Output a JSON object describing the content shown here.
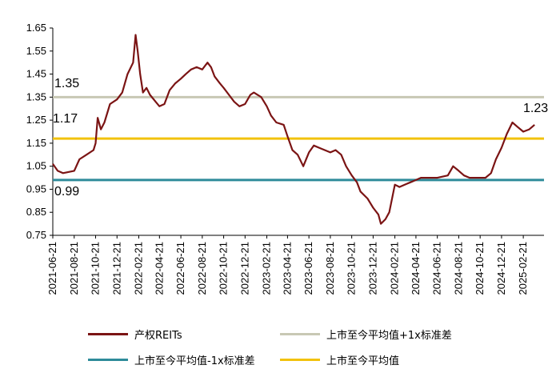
{
  "chart_data": {
    "type": "line",
    "ylim": [
      0.75,
      1.65
    ],
    "yticks": [
      "1.65",
      "1.55",
      "1.45",
      "1.35",
      "1.25",
      "1.15",
      "1.05",
      "0.95",
      "0.85",
      "0.75"
    ],
    "xticks": [
      "2021-06-21",
      "2021-08-21",
      "2021-10-21",
      "2021-12-21",
      "2022-02-21",
      "2022-04-21",
      "2022-06-21",
      "2022-08-21",
      "2022-10-21",
      "2022-12-21",
      "2023-02-21",
      "2023-04-21",
      "2023-06-21",
      "2023-08-21",
      "2023-10-21",
      "2023-12-21",
      "2024-02-21",
      "2024-04-21",
      "2024-06-21",
      "2024-08-21",
      "2024-10-21",
      "2024-12-21",
      "2025-02-21"
    ],
    "x_start": "2021-06-21",
    "x_end": "2025-04-21",
    "series": [
      {
        "name": "产权REITs",
        "color": "#7B1414",
        "points": [
          [
            "2021-06-21",
            1.06
          ],
          [
            "2021-07-05",
            1.03
          ],
          [
            "2021-07-20",
            1.02
          ],
          [
            "2021-08-21",
            1.03
          ],
          [
            "2021-09-05",
            1.08
          ],
          [
            "2021-09-25",
            1.1
          ],
          [
            "2021-10-15",
            1.12
          ],
          [
            "2021-10-21",
            1.15
          ],
          [
            "2021-10-27",
            1.26
          ],
          [
            "2021-11-05",
            1.21
          ],
          [
            "2021-11-15",
            1.24
          ],
          [
            "2021-12-01",
            1.32
          ],
          [
            "2021-12-21",
            1.34
          ],
          [
            "2022-01-05",
            1.37
          ],
          [
            "2022-01-20",
            1.45
          ],
          [
            "2022-02-05",
            1.5
          ],
          [
            "2022-02-12",
            1.62
          ],
          [
            "2022-02-18",
            1.55
          ],
          [
            "2022-02-25",
            1.45
          ],
          [
            "2022-03-05",
            1.37
          ],
          [
            "2022-03-15",
            1.39
          ],
          [
            "2022-03-25",
            1.36
          ],
          [
            "2022-04-10",
            1.33
          ],
          [
            "2022-04-21",
            1.31
          ],
          [
            "2022-05-05",
            1.32
          ],
          [
            "2022-05-20",
            1.38
          ],
          [
            "2022-06-05",
            1.41
          ],
          [
            "2022-06-21",
            1.43
          ],
          [
            "2022-07-05",
            1.45
          ],
          [
            "2022-07-20",
            1.47
          ],
          [
            "2022-08-05",
            1.48
          ],
          [
            "2022-08-21",
            1.47
          ],
          [
            "2022-09-05",
            1.5
          ],
          [
            "2022-09-15",
            1.48
          ],
          [
            "2022-09-25",
            1.44
          ],
          [
            "2022-10-10",
            1.41
          ],
          [
            "2022-10-21",
            1.39
          ],
          [
            "2022-11-05",
            1.36
          ],
          [
            "2022-11-20",
            1.33
          ],
          [
            "2022-12-05",
            1.31
          ],
          [
            "2022-12-21",
            1.32
          ],
          [
            "2023-01-05",
            1.36
          ],
          [
            "2023-01-15",
            1.37
          ],
          [
            "2023-02-05",
            1.35
          ],
          [
            "2023-02-21",
            1.31
          ],
          [
            "2023-03-05",
            1.27
          ],
          [
            "2023-03-20",
            1.24
          ],
          [
            "2023-04-10",
            1.23
          ],
          [
            "2023-04-21",
            1.18
          ],
          [
            "2023-05-05",
            1.12
          ],
          [
            "2023-05-20",
            1.1
          ],
          [
            "2023-06-05",
            1.05
          ],
          [
            "2023-06-21",
            1.11
          ],
          [
            "2023-07-05",
            1.14
          ],
          [
            "2023-07-20",
            1.13
          ],
          [
            "2023-08-05",
            1.12
          ],
          [
            "2023-08-21",
            1.11
          ],
          [
            "2023-09-05",
            1.12
          ],
          [
            "2023-09-21",
            1.1
          ],
          [
            "2023-10-05",
            1.05
          ],
          [
            "2023-10-21",
            1.01
          ],
          [
            "2023-11-05",
            0.98
          ],
          [
            "2023-11-15",
            0.94
          ],
          [
            "2023-12-05",
            0.91
          ],
          [
            "2023-12-21",
            0.87
          ],
          [
            "2024-01-05",
            0.84
          ],
          [
            "2024-01-12",
            0.8
          ],
          [
            "2024-01-25",
            0.82
          ],
          [
            "2024-02-05",
            0.85
          ],
          [
            "2024-02-21",
            0.97
          ],
          [
            "2024-03-05",
            0.96
          ],
          [
            "2024-03-20",
            0.97
          ],
          [
            "2024-04-05",
            0.98
          ],
          [
            "2024-04-21",
            0.99
          ],
          [
            "2024-05-05",
            1.0
          ],
          [
            "2024-06-05",
            1.0
          ],
          [
            "2024-06-21",
            1.0
          ],
          [
            "2024-07-21",
            1.01
          ],
          [
            "2024-08-05",
            1.05
          ],
          [
            "2024-08-21",
            1.03
          ],
          [
            "2024-09-05",
            1.01
          ],
          [
            "2024-09-21",
            1.0
          ],
          [
            "2024-10-21",
            1.0
          ],
          [
            "2024-11-05",
            1.0
          ],
          [
            "2024-11-21",
            1.02
          ],
          [
            "2024-12-05",
            1.08
          ],
          [
            "2024-12-21",
            1.13
          ],
          [
            "2025-01-05",
            1.19
          ],
          [
            "2025-01-21",
            1.24
          ],
          [
            "2025-02-05",
            1.22
          ],
          [
            "2025-02-21",
            1.2
          ],
          [
            "2025-03-10",
            1.21
          ],
          [
            "2025-03-25",
            1.23
          ]
        ]
      },
      {
        "name": "上市至今平均值+1x标准差",
        "color": "#C8C8B4",
        "value": 1.35
      },
      {
        "name": "上市至今平均值-1x标准差",
        "color": "#2E8B9A",
        "value": 0.99
      },
      {
        "name": "上市至今平均值",
        "color": "#F2C20D",
        "value": 1.17
      }
    ],
    "annotations": [
      "1.35",
      "1.17",
      "0.99",
      "1.23"
    ]
  }
}
